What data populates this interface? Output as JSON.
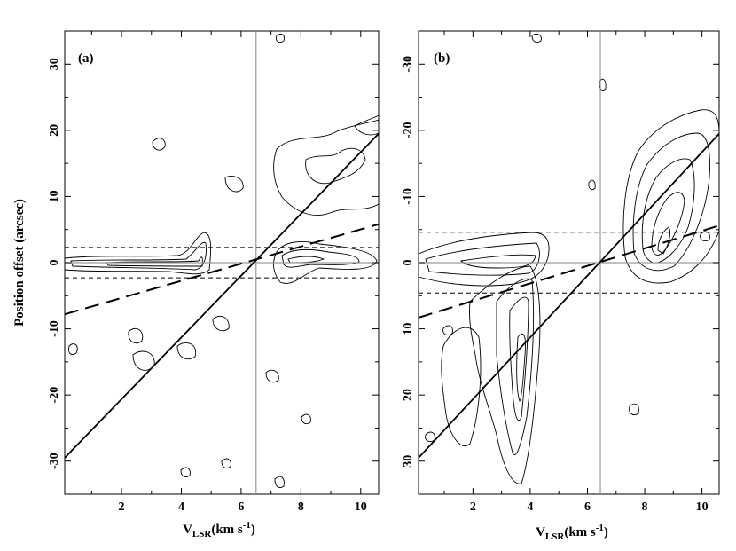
{
  "chart_data": [
    {
      "panel": "(a)",
      "type": "contour",
      "xlabel": {
        "main": "V",
        "sub": "LSR",
        "rest": "(km s",
        "sup": "-1",
        "end": ")"
      },
      "ylabel": "Position offset (arcsec)",
      "xlim": [
        0.1,
        10.6
      ],
      "ylim": [
        -35,
        35
      ],
      "y_inverted": false,
      "xticks": [
        2,
        4,
        6,
        8,
        10
      ],
      "yticks": [
        -30,
        -20,
        -10,
        0,
        10,
        20,
        30
      ],
      "vline_x": 6.5,
      "hlines": [
        {
          "y": 0,
          "style": "solid-gray"
        },
        {
          "y": 2.3,
          "style": "short-dash"
        },
        {
          "y": -2.3,
          "style": "short-dash"
        }
      ],
      "lines": [
        {
          "style": "solid",
          "points": [
            [
              0.1,
              -29.5
            ],
            [
              10.6,
              19.5
            ]
          ]
        },
        {
          "style": "long-dash",
          "points": [
            [
              0.1,
              -7.8
            ],
            [
              10.6,
              5.8
            ]
          ]
        }
      ]
    },
    {
      "panel": "(b)",
      "type": "contour",
      "xlabel": {
        "main": "V",
        "sub": "LSR",
        "rest": "(km s",
        "sup": "-1",
        "end": ")"
      },
      "ylabel": "",
      "xlim": [
        0.1,
        10.6
      ],
      "ylim": [
        -35,
        35
      ],
      "y_inverted": true,
      "xticks": [
        2,
        4,
        6,
        8,
        10
      ],
      "yticks": [
        -30,
        -20,
        -10,
        0,
        10,
        20,
        30
      ],
      "vline_x": 6.45,
      "hlines": [
        {
          "y": 0,
          "style": "solid-gray"
        },
        {
          "y": -4.6,
          "style": "short-dash"
        },
        {
          "y": 4.6,
          "style": "short-dash"
        }
      ],
      "lines": [
        {
          "style": "solid",
          "points": [
            [
              0.1,
              29.5
            ],
            [
              10.6,
              -19.5
            ]
          ]
        },
        {
          "style": "long-dash",
          "points": [
            [
              0.1,
              8.3
            ],
            [
              10.6,
              -5.6
            ]
          ]
        }
      ]
    }
  ]
}
